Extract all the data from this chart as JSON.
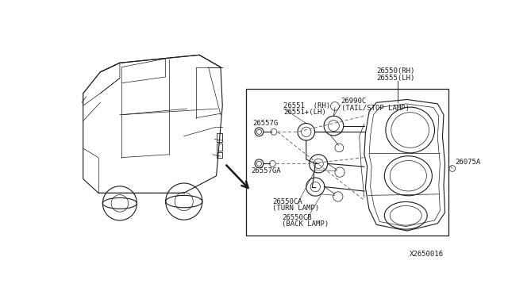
{
  "bg_color": "#ffffff",
  "line_color": "#1a1a1a",
  "dashed_color": "#555555",
  "fig_width": 6.4,
  "fig_height": 3.72,
  "part_number": "X2650016",
  "label_26557G": "26557G",
  "label_26557GA": "26557GA",
  "label_26551_1": "26551  (RH)",
  "label_26551_2": "26551+(LH)",
  "label_26990C_1": "26990C",
  "label_26990C_2": "(TAIL/STOP LAMP)",
  "label_26550_1": "26550(RH)",
  "label_26550_2": "26555(LH)",
  "label_turn_1": "26550CA",
  "label_turn_2": "(TURN LAMP)",
  "label_back_1": "26550CB",
  "label_back_2": "(BACK LAMP)",
  "label_26075A": "26075A"
}
